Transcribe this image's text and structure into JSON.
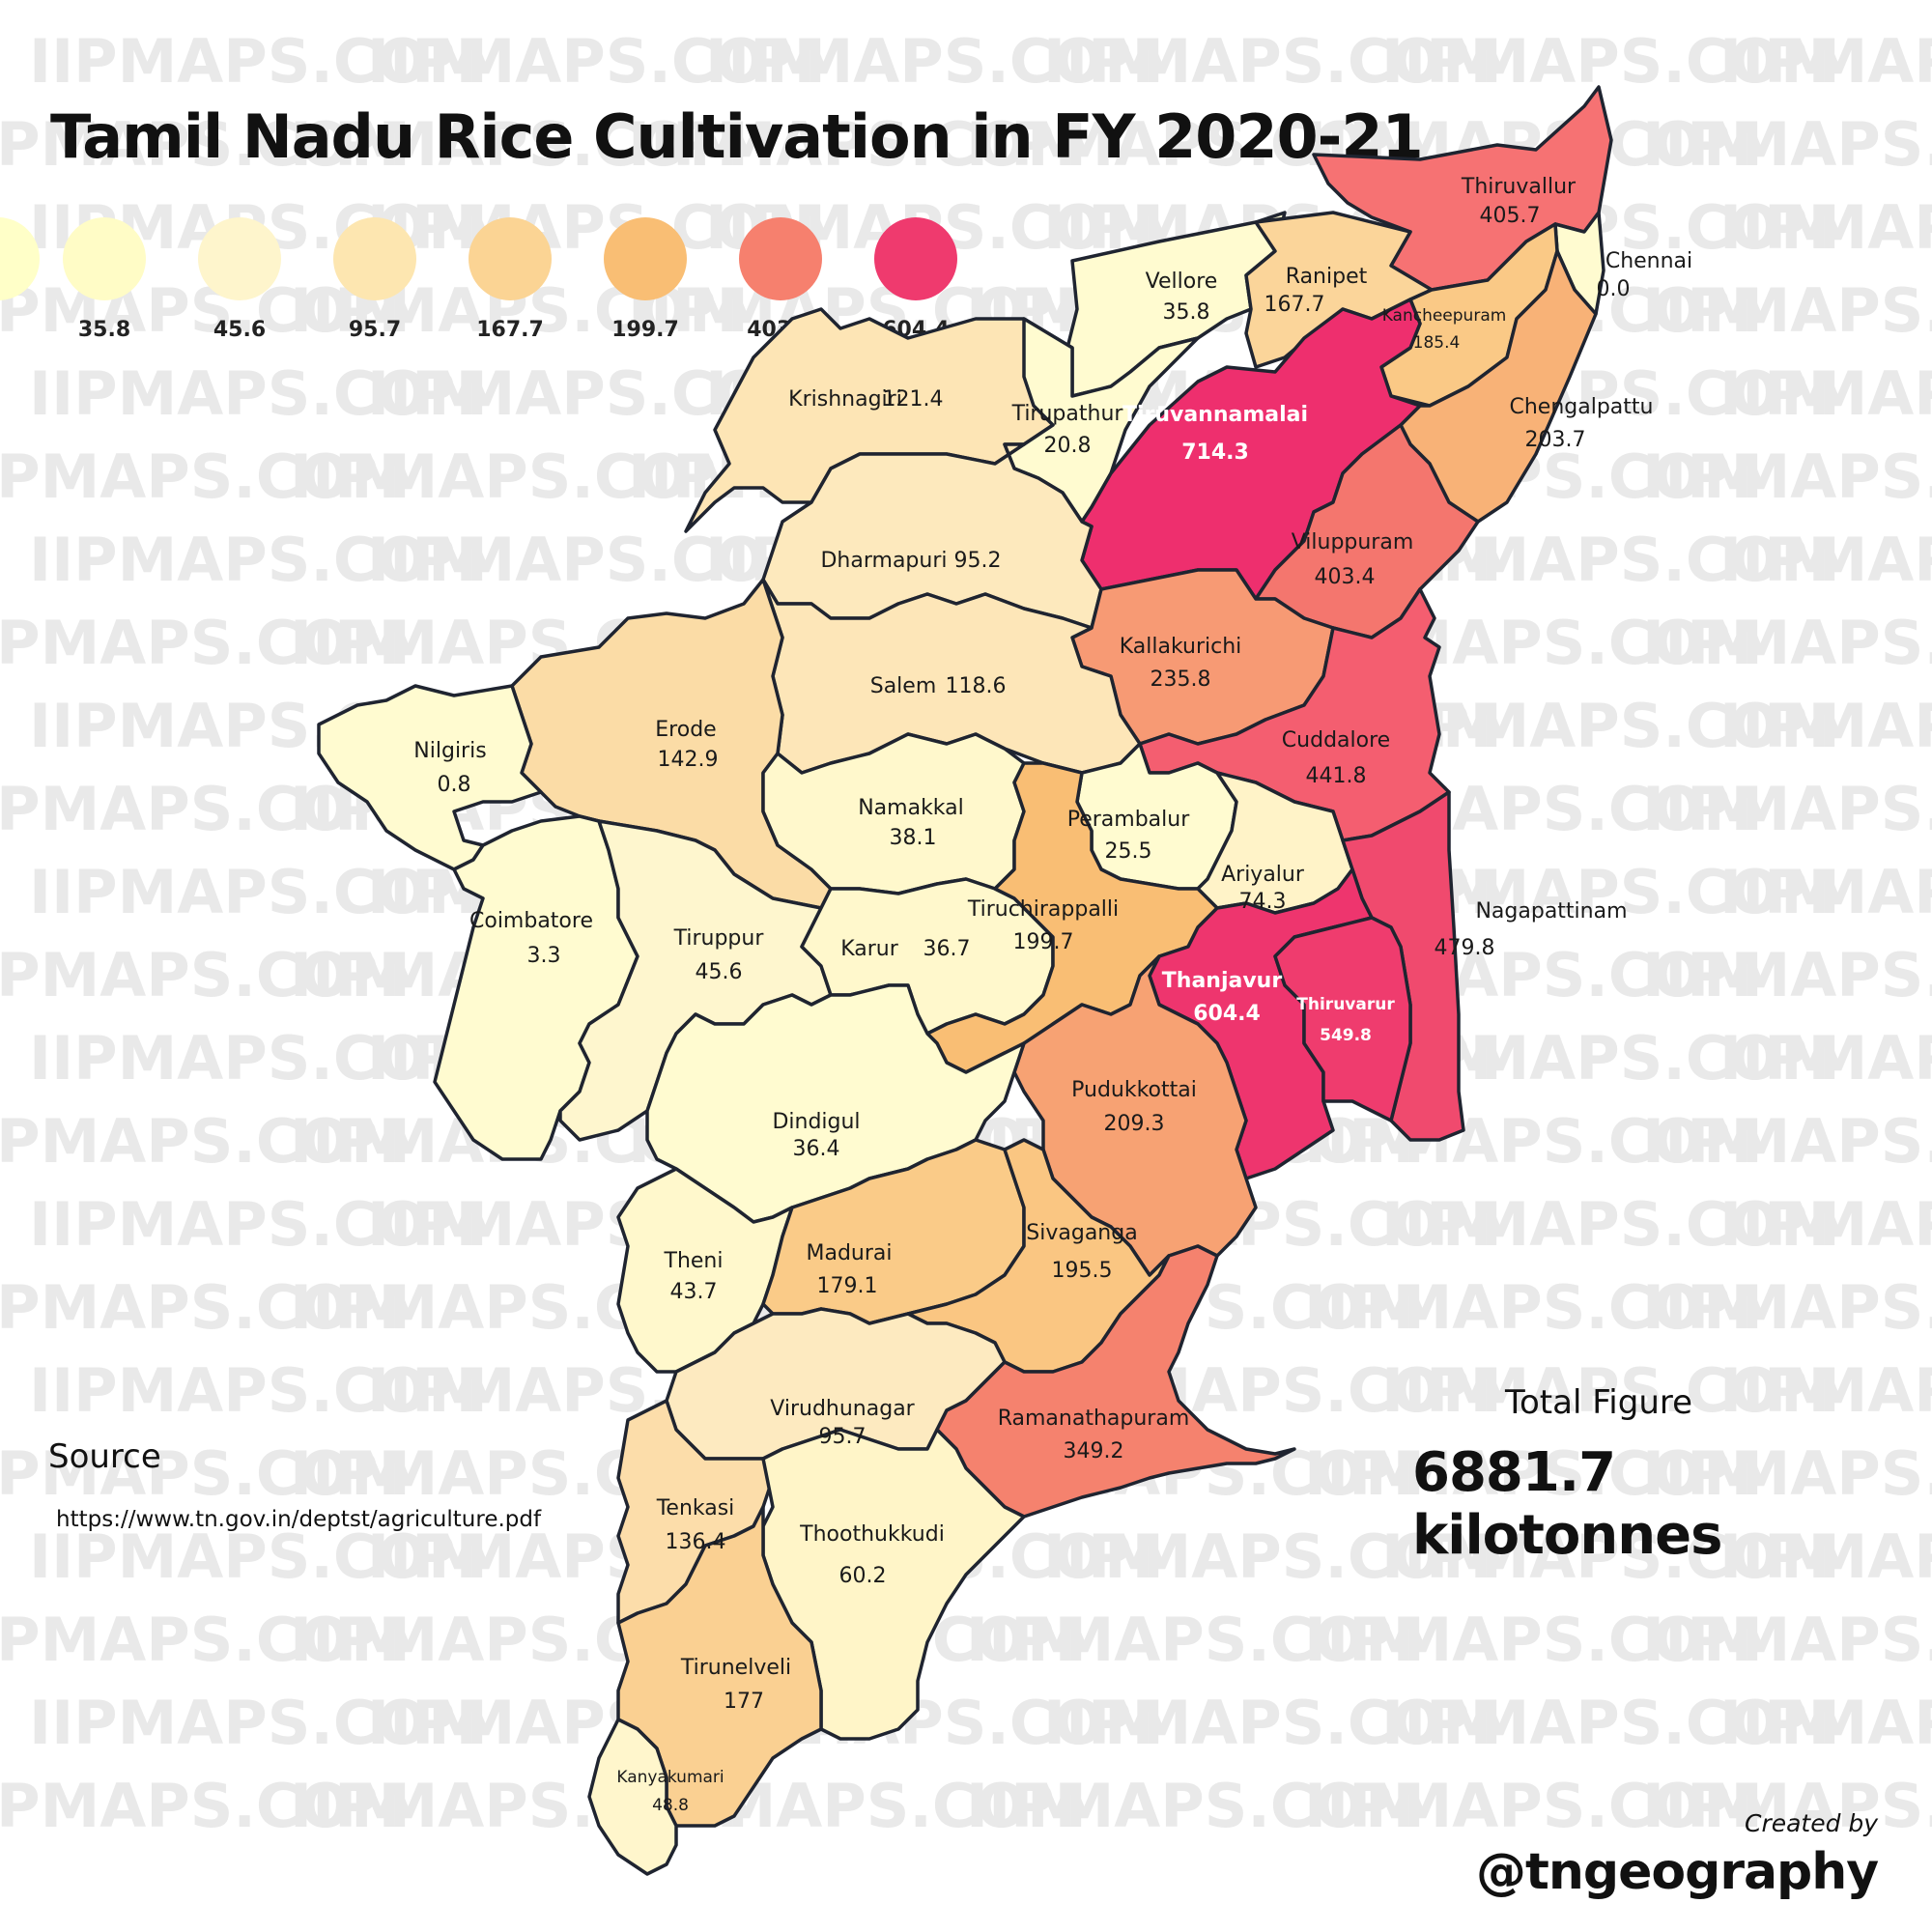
{
  "title": "Tamil Nadu Rice Cultivation in FY 2020-21",
  "watermark": "IIPMAPS.COM",
  "legend": [
    {
      "label": "",
      "color": "#FFFFC8"
    },
    {
      "label": "35.8",
      "color": "#FFFCC6"
    },
    {
      "label": "45.6",
      "color": "#FEF5CC"
    },
    {
      "label": "95.7",
      "color": "#FDE6B0"
    },
    {
      "label": "167.7",
      "color": "#FBD494"
    },
    {
      "label": "199.7",
      "color": "#F9BE74"
    },
    {
      "label": "403.4",
      "color": "#F6806E"
    },
    {
      "label": "604.4",
      "color": "#EF3A6E"
    }
  ],
  "districts": [
    {
      "name": "Thiruvallur",
      "value": "405.7",
      "color": "#F67273"
    },
    {
      "name": "Chennai",
      "value": "0.0",
      "color": "#FFFBD0"
    },
    {
      "name": "Vellore",
      "value": "35.8",
      "color": "#FFFBD0"
    },
    {
      "name": "Ranipet",
      "value": "167.7",
      "color": "#FBD59A"
    },
    {
      "name": "Kancheepuram",
      "value": "185.4",
      "color": "#FAC986"
    },
    {
      "name": "Chengalpattu",
      "value": "203.7",
      "color": "#F8B277"
    },
    {
      "name": "Krishnagiri",
      "value": "121.4",
      "color": "#FDE5B5"
    },
    {
      "name": "Tirupathur",
      "value": "20.8",
      "color": "#FFFBD0"
    },
    {
      "name": "Tiruvannamalai",
      "value": "714.3",
      "color": "#EE2F6E"
    },
    {
      "name": "Dharmapuri",
      "value": "95.2",
      "color": "#FDE9BD"
    },
    {
      "name": "Viluppuram",
      "value": "403.4",
      "color": "#F4766E"
    },
    {
      "name": "Kallakurichi",
      "value": "235.8",
      "color": "#F79A74"
    },
    {
      "name": "Salem",
      "value": "118.6",
      "color": "#FDE6B8"
    },
    {
      "name": "Erode",
      "value": "142.9",
      "color": "#FBDCA6"
    },
    {
      "name": "Nilgiris",
      "value": "0.8",
      "color": "#FFFBD0"
    },
    {
      "name": "Cuddalore",
      "value": "441.8",
      "color": "#F45E70"
    },
    {
      "name": "Namakkal",
      "value": "38.1",
      "color": "#FFF8CC"
    },
    {
      "name": "Perambalur",
      "value": "25.5",
      "color": "#FFFBD0"
    },
    {
      "name": "Ariyalur",
      "value": "74.3",
      "color": "#FFF3C8"
    },
    {
      "name": "Coimbatore",
      "value": "3.3",
      "color": "#FFFBD0"
    },
    {
      "name": "Tiruppur",
      "value": "45.6",
      "color": "#FEF6CE"
    },
    {
      "name": "Karur",
      "value": "36.7",
      "color": "#FFF8CC"
    },
    {
      "name": "Tiruchirappalli",
      "value": "199.7",
      "color": "#F9BE74"
    },
    {
      "name": "Nagapattinam",
      "value": "479.8",
      "color": "#F04A6E"
    },
    {
      "name": "Thanjavur",
      "value": "604.4",
      "color": "#EE356E"
    },
    {
      "name": "Thiruvarur",
      "value": "549.8",
      "color": "#EF3C6E"
    },
    {
      "name": "Pudukkottai",
      "value": "209.3",
      "color": "#F7A273"
    },
    {
      "name": "Dindigul",
      "value": "36.4",
      "color": "#FFFBD0"
    },
    {
      "name": "Theni",
      "value": "43.7",
      "color": "#FFF8CC"
    },
    {
      "name": "Madurai",
      "value": "179.1",
      "color": "#FACB88"
    },
    {
      "name": "Sivaganga",
      "value": "195.5",
      "color": "#FAC682"
    },
    {
      "name": "Virudhunagar",
      "value": "95.7",
      "color": "#FDEAC0"
    },
    {
      "name": "Ramanathapuram",
      "value": "349.2",
      "color": "#F5826E"
    },
    {
      "name": "Tenkasi",
      "value": "136.4",
      "color": "#FCDDAA"
    },
    {
      "name": "Thoothukkudi",
      "value": "60.2",
      "color": "#FFF5C8"
    },
    {
      "name": "Tirunelveli",
      "value": "177",
      "color": "#FAD092"
    },
    {
      "name": "Kanyakumari",
      "value": "48.8",
      "color": "#FFF6CC"
    }
  ],
  "source": {
    "heading": "Source",
    "url": "https://www.tn.gov.in/deptst/agriculture.pdf"
  },
  "total": {
    "heading": "Total Figure",
    "value": "6881.7 kilotonnes"
  },
  "credit": {
    "label": "Created by",
    "handle": "@tngeography"
  },
  "colors": {
    "border": "#1f2430",
    "background": "#ffffff"
  }
}
